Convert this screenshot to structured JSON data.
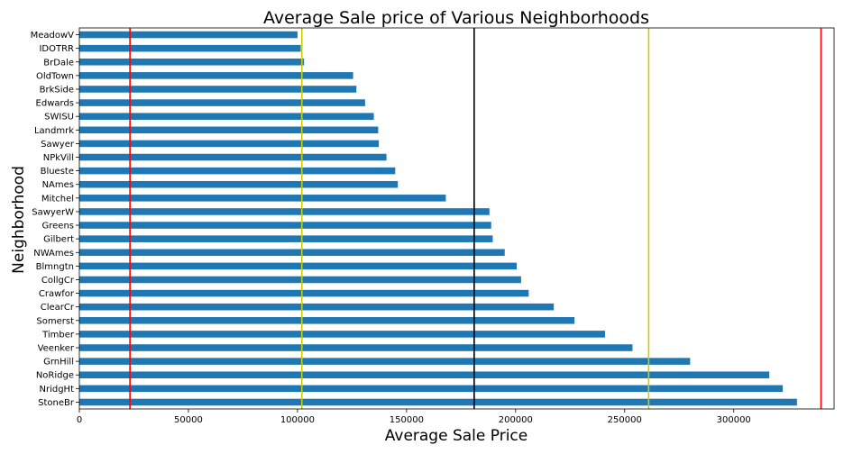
{
  "chart_data": {
    "type": "bar",
    "orientation": "horizontal",
    "title": "Average Sale price of Various Neighborhoods",
    "xlabel": "Average Sale Price",
    "ylabel": "Neighborhood",
    "categories": [
      "StoneBr",
      "NridgHt",
      "NoRidge",
      "GrnHill",
      "Veenker",
      "Timber",
      "Somerst",
      "ClearCr",
      "Crawfor",
      "CollgCr",
      "Blmngtn",
      "NWAmes",
      "Gilbert",
      "Greens",
      "SawyerW",
      "Mitchel",
      "NAmes",
      "Blueste",
      "NPkVill",
      "Sawyer",
      "Landmrk",
      "SWISU",
      "Edwards",
      "BrkSide",
      "OldTown",
      "BrDale",
      "IDOTRR",
      "MeadowV"
    ],
    "values": [
      329000,
      322500,
      316300,
      280000,
      253600,
      241000,
      227000,
      217500,
      206000,
      202500,
      200500,
      195000,
      189500,
      188800,
      188000,
      168000,
      146000,
      144800,
      140800,
      137300,
      137000,
      135000,
      131000,
      127000,
      125500,
      103000,
      101500,
      100000
    ],
    "xlim": [
      0,
      346000
    ],
    "xticks": [
      "0",
      "50000",
      "100000",
      "150000",
      "200000",
      "250000",
      "300000"
    ],
    "xtick_values": [
      0,
      50000,
      100000,
      150000,
      200000,
      250000,
      300000
    ],
    "reference_lines": [
      {
        "value": 23200,
        "color": "#ff0000"
      },
      {
        "value": 102000,
        "color": "#cccc00"
      },
      {
        "value": 181000,
        "color": "#000000"
      },
      {
        "value": 261000,
        "color": "#cccc00"
      },
      {
        "value": 340000,
        "color": "#ff0000"
      }
    ],
    "bar_color": "#1f77b4",
    "grid": false,
    "legend": "none"
  }
}
